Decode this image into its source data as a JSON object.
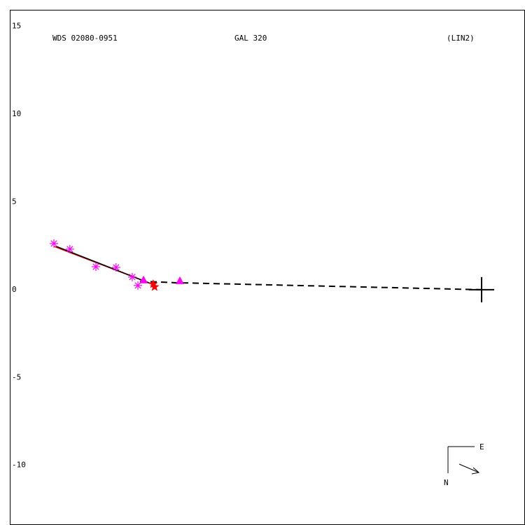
{
  "chart_data": {
    "type": "scatter",
    "annotations": [
      "WDS 02080-0951",
      "GAL 320",
      "(LIN2)"
    ],
    "compass_labels": [
      "E",
      "N"
    ],
    "xlim": [
      -26.85,
      2.47
    ],
    "ylim": [
      -13.4,
      15.94
    ],
    "yticks": [
      15,
      10,
      5,
      0,
      -5,
      -10
    ],
    "grid": false,
    "series": [
      {
        "kind": "line",
        "style": "solid",
        "color": "#ff0000",
        "x": [
          -24.34,
          -18.85
        ],
        "values": [
          2.47,
          0.36
        ]
      },
      {
        "kind": "line",
        "style": "solid",
        "color": "#000000",
        "x": [
          -24.22,
          -18.65
        ],
        "values": [
          2.47,
          0.28
        ]
      },
      {
        "kind": "line",
        "style": "dashed",
        "color": "#000000",
        "x": [
          -19.44,
          -17.5,
          0
        ],
        "values": [
          0.48,
          0.4,
          0
        ]
      },
      {
        "kind": "marker",
        "marker": "asterisk",
        "color": "#ff00ff",
        "x": [
          -24.34,
          -23.43,
          -21.95,
          -20.8,
          -19.88,
          -19.56
        ],
        "values": [
          2.63,
          2.31,
          1.31,
          1.27,
          0.72,
          0.24
        ]
      },
      {
        "kind": "marker",
        "marker": "triangle",
        "color": "#ff00ff",
        "x": [
          -19.24,
          -17.17
        ],
        "values": [
          0.56,
          0.52
        ]
      },
      {
        "kind": "marker",
        "marker": "star",
        "color": "#ff0000",
        "x": [
          -18.69,
          -18.61
        ],
        "values": [
          0.32,
          0.16
        ]
      },
      {
        "kind": "marker",
        "marker": "cross",
        "color": "#000000",
        "x": [
          0
        ],
        "values": [
          0
        ]
      }
    ]
  }
}
